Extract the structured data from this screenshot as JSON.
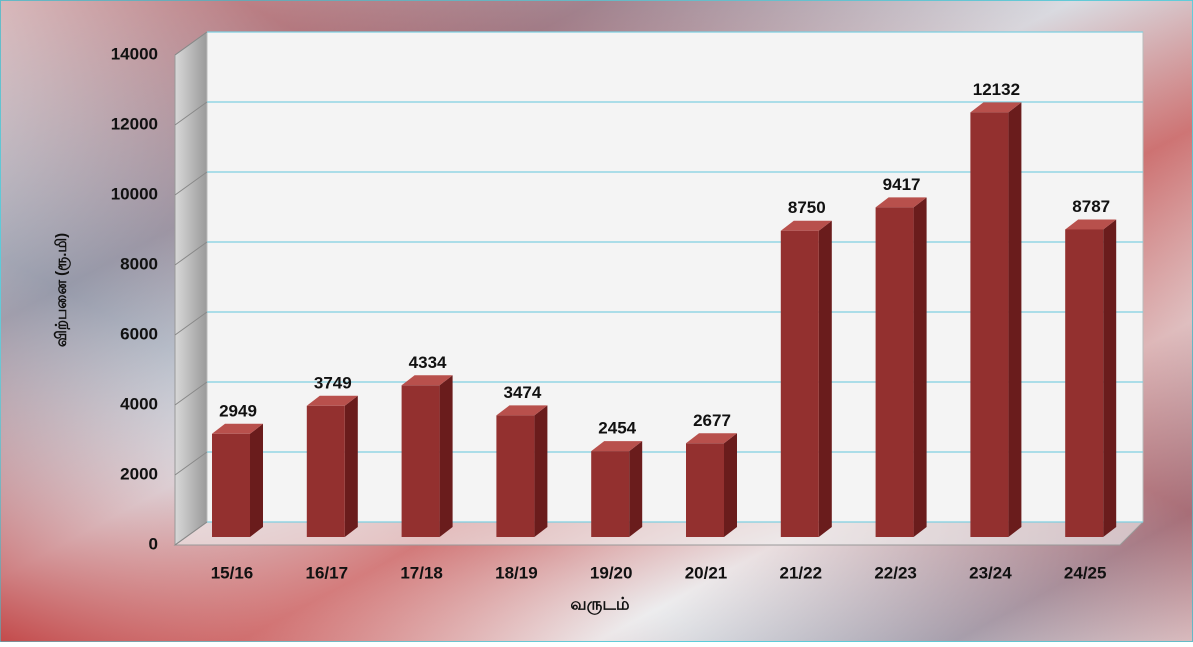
{
  "chart_data": {
    "type": "bar",
    "x_label": "வருடம்",
    "y_label": "விற்பனை (ரூ.மி)",
    "categories": [
      "15/16",
      "16/17",
      "17/18",
      "18/19",
      "19/20",
      "20/21",
      "21/22",
      "22/23",
      "23/24",
      "24/25"
    ],
    "values": [
      2949,
      3749,
      4334,
      3474,
      2454,
      2677,
      8750,
      9417,
      12132,
      8787
    ],
    "color": "#93302f",
    "ylim": [
      0,
      14000
    ],
    "yticks": [
      0,
      2000,
      4000,
      6000,
      8000,
      10000,
      12000,
      14000
    ],
    "grid": true
  }
}
